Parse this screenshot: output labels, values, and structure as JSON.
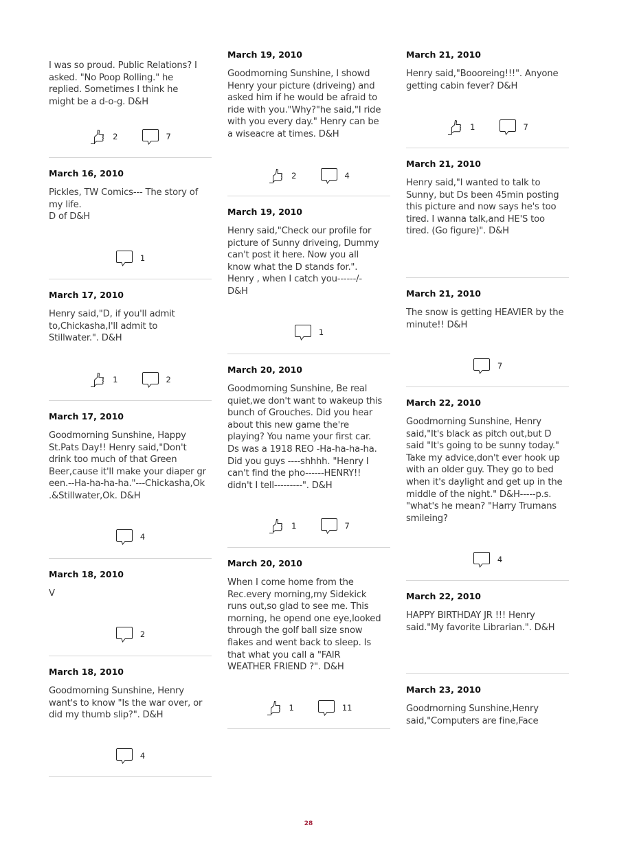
{
  "page_number": "28",
  "colors": {
    "page_number": "#a3243c",
    "divider": "#d6d6d6"
  },
  "columns": [
    [
      {
        "date": "",
        "text": "I was so proud. Public Relations? I\nasked. \"No Poop Rolling.\" he\nreplied. Sometimes I think he\nmight be a d-o-g. D&H",
        "likes": "2",
        "comments": "7"
      },
      {
        "date": "March 16, 2010",
        "text": "Pickles, TW Comics--- The story of\nmy life.\nD of D&H",
        "comments": "1"
      },
      {
        "date": "March 17, 2010",
        "text": "Henry said,\"D, if you'll admit\nto,Chickasha,I'll admit to\nStillwater.\". D&H",
        "likes": "1",
        "comments": "2"
      },
      {
        "date": "March 17, 2010",
        "text": "Goodmorning Sunshine, Happy\nSt.Pats Day!! Henry said,\"Don't\ndrink too much of that Green\nBeer,cause it'll make your diaper gr\neen.--Ha-ha-ha-ha.\"---Chickasha,Ok\n.&Stillwater,Ok. D&H",
        "comments": "4"
      },
      {
        "date": "March 18, 2010",
        "text": "V",
        "comments": "2"
      },
      {
        "date": "March 18, 2010",
        "text": "Goodmorning Sunshine, Henry\nwant's to know \"Is the war over, or\ndid my thumb slip?\". D&H",
        "comments": "4"
      }
    ],
    [
      {
        "date": "March 19, 2010",
        "text": "Goodmorning Sunshine, I showd\nHenry your picture (driveing) and\nasked him if he would be afraid to\nride with you.\"Why?\"he said,\"I ride\nwith you every day.\" Henry can be\na wiseacre at times. D&H",
        "likes": "2",
        "comments": "4"
      },
      {
        "date": "March 19, 2010",
        "text": "Henry said,\"Check our profile for\npicture of Sunny driveing, Dummy\ncan't post it here. Now you all\nknow what the D stands for.\".\nHenry , when I catch you------/-\nD&H",
        "comments": "1"
      },
      {
        "date": "March 20, 2010",
        "text": "Goodmorning Sunshine, Be real\nquiet,we don't want to wakeup this\nbunch of Grouches. Did you hear\nabout this new game the're\nplaying? You name your first car.\nDs was a 1918 REO -Ha-ha-ha-ha.\nDid you guys ----shhhh. \"Henry I\ncan't find the pho------HENRY!!\ndidn't I tell---------\". D&H",
        "likes": "1",
        "comments": "7"
      },
      {
        "date": "March 20, 2010",
        "text": "When I come home from the\nRec.every morning,my Sidekick\nruns out,so glad to see me. This\nmorning, he opend one eye,looked\nthrough the golf ball size snow\nflakes and went back to sleep. Is\nthat what you call a \"FAIR\nWEATHER FRIEND ?\". D&H",
        "likes": "1",
        "comments": "11"
      }
    ],
    [
      {
        "date": "March 21, 2010",
        "text": "Henry said,\"Boooreing!!!\". Anyone\ngetting cabin fever? D&H",
        "likes": "1",
        "comments": "7"
      },
      {
        "date": "March 21, 2010",
        "text": "Henry said,\"I wanted to talk to\nSunny, but Ds been 45min posting\nthis picture and now says he's too\ntired. I wanna talk,and HE'S too\ntired. (Go figure)\". D&H"
      },
      {
        "date": "March 21, 2010",
        "text": "The snow is getting HEAVIER by the\nminute!! D&H",
        "comments": "7"
      },
      {
        "date": "March 22, 2010",
        "text": "Goodmorning Sunshine, Henry\nsaid,\"It's black as pitch out,but D\nsaid \"It's going to be sunny today.\"\nTake my advice,don't ever hook up\nwith an older guy. They go to bed\nwhen it's daylight and get up in the\nmiddle of the night.\" D&H-----p.s.\n\"what's he mean? \"Harry Trumans\nsmileing?",
        "comments": "4"
      },
      {
        "date": "March 22, 2010",
        "text": "HAPPY BIRTHDAY JR !!! Henry\nsaid.\"My favorite Librarian.\". D&H"
      },
      {
        "date": "March 23, 2010",
        "text": "Goodmorning Sunshine,Henry\nsaid,\"Computers are fine,Face"
      }
    ]
  ]
}
